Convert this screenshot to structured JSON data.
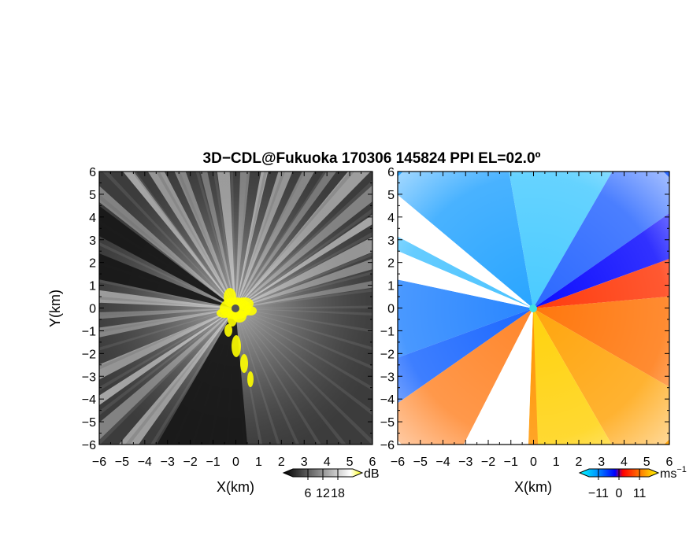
{
  "chart_data": {
    "title": "3D−CDL@Fukuoka 170306 145824 PPI EL=02.0º",
    "panels": [
      {
        "name": "reflectivity",
        "type": "heatmap",
        "xlabel": "X(km)",
        "ylabel": "Y(km)",
        "xlim": [
          -6,
          6
        ],
        "ylim": [
          -6,
          6
        ],
        "xticks": [
          "−6",
          "−5",
          "−4",
          "−3",
          "−2",
          "−1",
          "0",
          "1",
          "2",
          "3",
          "4",
          "5",
          "6"
        ],
        "yticks": [
          "6",
          "5",
          "4",
          "3",
          "2",
          "1",
          "0",
          "−1",
          "−2",
          "−3",
          "−4",
          "−5",
          "−6"
        ],
        "colorbar": {
          "unit": "dB",
          "ticks": [
            "6",
            "12",
            "18"
          ],
          "range": [
            0,
            24
          ],
          "colors": [
            "#000000",
            "#ffffff",
            "#ffff00"
          ]
        },
        "beams_deg": [
          10,
          18,
          25,
          33,
          40,
          48,
          55,
          62,
          70,
          78,
          86,
          95,
          103,
          112,
          120,
          128,
          140,
          175,
          183,
          190,
          205,
          214,
          222,
          232
        ],
        "blocked_sectors_deg": [
          [
            143,
            152
          ],
          [
            158,
            168
          ],
          [
            240,
            275
          ]
        ]
      },
      {
        "name": "doppler_velocity",
        "type": "heatmap",
        "xlabel": "X(km)",
        "xlim": [
          -6,
          6
        ],
        "ylim": [
          -6,
          6
        ],
        "xticks": [
          "−6",
          "−5",
          "−4",
          "−3",
          "−2",
          "−1",
          "0",
          "1",
          "2",
          "3",
          "4",
          "5",
          "6"
        ],
        "yticks": [
          "6",
          "5",
          "4",
          "3",
          "2",
          "1",
          "0",
          "−1",
          "−2",
          "−3",
          "−4",
          "−5",
          "−6"
        ],
        "colorbar": {
          "unit": "ms",
          "unit_exp": "−1",
          "ticks": [
            "−11",
            "0",
            "11"
          ],
          "range": [
            -16,
            16
          ],
          "colors": [
            "#00ffff",
            "#00a0ff",
            "#0000ff",
            "#ff0000",
            "#ff8000",
            "#ffff00"
          ]
        },
        "blocked_sectors_deg": [
          [
            140,
            152
          ],
          [
            157,
            168
          ],
          [
            243,
            268
          ]
        ]
      }
    ]
  }
}
